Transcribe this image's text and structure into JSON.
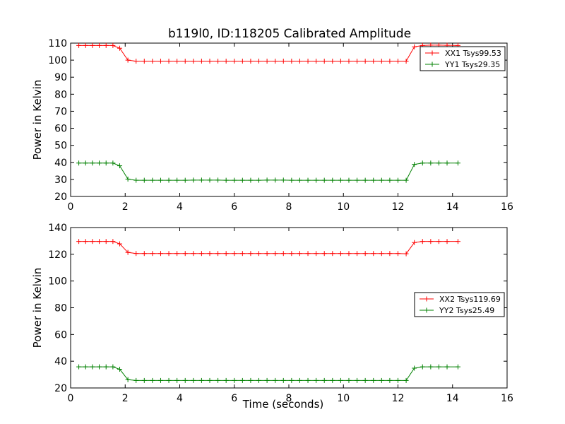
{
  "figure": {
    "title": "b119l0, ID:118205 Calibrated Amplitude"
  },
  "chart_data": [
    {
      "type": "line",
      "title": "b119l0, ID:118205 Calibrated Amplitude",
      "xlabel": "",
      "ylabel": "Power in Kelvin",
      "xlim": [
        0,
        16
      ],
      "ylim": [
        20,
        110
      ],
      "xticks": [
        0,
        2,
        4,
        6,
        8,
        10,
        12,
        14,
        16
      ],
      "yticks": [
        20,
        30,
        40,
        50,
        60,
        70,
        80,
        90,
        100,
        110
      ],
      "grid": false,
      "legend_position": "top-right",
      "x": [
        0.3,
        0.55,
        0.8,
        1.05,
        1.3,
        1.55,
        1.8,
        2.1,
        2.4,
        2.7,
        3.0,
        3.3,
        3.6,
        3.9,
        4.2,
        4.5,
        4.8,
        5.1,
        5.4,
        5.7,
        6.0,
        6.3,
        6.6,
        6.9,
        7.2,
        7.5,
        7.8,
        8.1,
        8.4,
        8.7,
        9.0,
        9.3,
        9.6,
        9.9,
        10.2,
        10.5,
        10.8,
        11.1,
        11.4,
        11.7,
        12.0,
        12.3,
        12.6,
        12.9,
        13.2,
        13.5,
        13.8,
        14.2
      ],
      "series": [
        {
          "name": "XX1 Tsys99.53",
          "color": "#ff0000",
          "values": [
            108.6,
            108.6,
            108.6,
            108.6,
            108.6,
            108.6,
            107.0,
            100.0,
            99.4,
            99.4,
            99.4,
            99.4,
            99.4,
            99.4,
            99.4,
            99.4,
            99.4,
            99.4,
            99.4,
            99.4,
            99.4,
            99.4,
            99.4,
            99.4,
            99.4,
            99.4,
            99.4,
            99.4,
            99.4,
            99.4,
            99.4,
            99.4,
            99.4,
            99.4,
            99.4,
            99.4,
            99.4,
            99.4,
            99.4,
            99.4,
            99.4,
            99.4,
            107.8,
            108.6,
            108.8,
            108.8,
            108.7,
            108.6
          ]
        },
        {
          "name": "YY1 Tsys29.35",
          "color": "#008000",
          "values": [
            39.6,
            39.6,
            39.6,
            39.6,
            39.6,
            39.6,
            38.0,
            30.2,
            29.5,
            29.5,
            29.5,
            29.5,
            29.5,
            29.5,
            29.5,
            29.6,
            29.6,
            29.6,
            29.6,
            29.5,
            29.5,
            29.5,
            29.5,
            29.5,
            29.6,
            29.6,
            29.6,
            29.5,
            29.5,
            29.5,
            29.5,
            29.5,
            29.5,
            29.5,
            29.5,
            29.5,
            29.5,
            29.5,
            29.5,
            29.5,
            29.5,
            29.5,
            38.8,
            39.6,
            39.6,
            39.6,
            39.6,
            39.6
          ]
        }
      ]
    },
    {
      "type": "line",
      "title": "",
      "xlabel": "Time (seconds)",
      "ylabel": "Power in Kelvin",
      "xlim": [
        0,
        16
      ],
      "ylim": [
        20,
        140
      ],
      "xticks": [
        0,
        2,
        4,
        6,
        8,
        10,
        12,
        14,
        16
      ],
      "yticks": [
        20,
        40,
        60,
        80,
        100,
        120,
        140
      ],
      "grid": false,
      "legend_position": "center-right",
      "x": [
        0.3,
        0.55,
        0.8,
        1.05,
        1.3,
        1.55,
        1.8,
        2.1,
        2.4,
        2.7,
        3.0,
        3.3,
        3.6,
        3.9,
        4.2,
        4.5,
        4.8,
        5.1,
        5.4,
        5.7,
        6.0,
        6.3,
        6.6,
        6.9,
        7.2,
        7.5,
        7.8,
        8.1,
        8.4,
        8.7,
        9.0,
        9.3,
        9.6,
        9.9,
        10.2,
        10.5,
        10.8,
        11.1,
        11.4,
        11.7,
        12.0,
        12.3,
        12.6,
        12.9,
        13.2,
        13.5,
        13.8,
        14.2
      ],
      "series": [
        {
          "name": "XX2 Tsys119.69",
          "color": "#ff0000",
          "values": [
            129.6,
            129.6,
            129.6,
            129.6,
            129.6,
            129.6,
            127.8,
            121.4,
            120.6,
            120.6,
            120.6,
            120.6,
            120.6,
            120.6,
            120.6,
            120.6,
            120.6,
            120.6,
            120.6,
            120.6,
            120.6,
            120.6,
            120.6,
            120.6,
            120.6,
            120.6,
            120.6,
            120.6,
            120.6,
            120.6,
            120.6,
            120.6,
            120.6,
            120.6,
            120.6,
            120.6,
            120.6,
            120.6,
            120.6,
            120.6,
            120.6,
            120.4,
            128.8,
            129.6,
            129.6,
            129.6,
            129.6,
            129.6
          ]
        },
        {
          "name": "YY2 Tsys25.49",
          "color": "#008000",
          "values": [
            35.8,
            35.8,
            35.8,
            35.8,
            35.8,
            35.8,
            34.0,
            26.2,
            25.6,
            25.6,
            25.6,
            25.6,
            25.6,
            25.6,
            25.6,
            25.6,
            25.6,
            25.6,
            25.6,
            25.6,
            25.6,
            25.6,
            25.6,
            25.6,
            25.6,
            25.6,
            25.6,
            25.6,
            25.6,
            25.6,
            25.6,
            25.6,
            25.6,
            25.6,
            25.6,
            25.6,
            25.6,
            25.6,
            25.6,
            25.6,
            25.6,
            25.6,
            34.8,
            35.8,
            35.8,
            35.8,
            35.8,
            35.8
          ]
        }
      ]
    }
  ]
}
